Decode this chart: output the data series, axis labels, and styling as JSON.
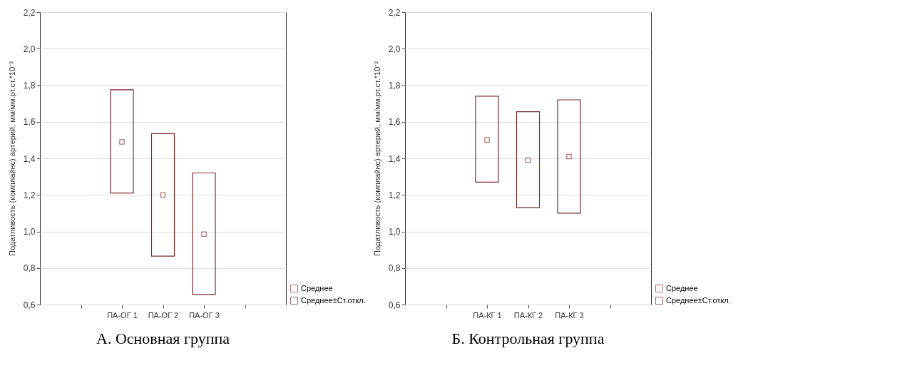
{
  "chart_data": [
    {
      "type": "bar",
      "title": "А. Основная группа",
      "ylabel": "Податливость (комплайнс) артерий, мм/мм.рт.ст.*10⁻³",
      "categories": [
        null,
        "ПА-ОГ 1",
        "ПА-ОГ 2",
        "ПА-ОГ 3",
        null
      ],
      "series": [
        {
          "name": "Среднее",
          "type": "scatter",
          "marker": "square",
          "color": "#9b3535",
          "values": [
            null,
            1.49,
            1.2,
            0.985,
            null
          ]
        },
        {
          "name": "Среднее±Ст.откл.",
          "color": "#7b2c2c",
          "base": [
            null,
            1.21,
            0.865,
            0.655,
            null
          ],
          "values": [
            null,
            0.565,
            0.67,
            0.665,
            null
          ]
        }
      ],
      "ylim": [
        0.6,
        2.2
      ],
      "yticks": [
        {
          "value": 0.6,
          "label": "0,6"
        },
        {
          "value": 0.8,
          "label": "0,8"
        },
        {
          "value": 1.0,
          "label": "1,0"
        },
        {
          "value": 1.2,
          "label": "1,2"
        },
        {
          "value": 1.4,
          "label": "1,4"
        },
        {
          "value": 1.6,
          "label": "1,6"
        },
        {
          "value": 1.8,
          "label": "1,8"
        },
        {
          "value": 2.0,
          "label": "2,0"
        },
        {
          "value": 2.2,
          "label": "2,2"
        }
      ],
      "grid": "y",
      "legend": "bottom right"
    },
    {
      "type": "bar",
      "title": "Б. Контрольная группа",
      "ylabel": "Податливость (комплайнс) артерий, мм/мм.рт.ст.*10⁻³",
      "categories": [
        null,
        "ПА-КГ 1",
        "ПА-КГ 2",
        "ПА-КГ 3",
        null
      ],
      "series": [
        {
          "name": "Среднее",
          "type": "scatter",
          "marker": "square",
          "color": "#9b3535",
          "values": [
            null,
            1.5,
            1.39,
            1.41,
            null
          ]
        },
        {
          "name": "Среднее±Ст.откл.",
          "color": "#7b2c2c",
          "base": [
            null,
            1.27,
            1.13,
            1.1,
            null
          ],
          "values": [
            null,
            0.47,
            0.525,
            0.62,
            null
          ]
        }
      ],
      "ylim": [
        0.6,
        2.2
      ],
      "yticks": [
        {
          "value": 0.6,
          "label": "0,6"
        },
        {
          "value": 0.8,
          "label": "0,8"
        },
        {
          "value": 1.0,
          "label": "1,0"
        },
        {
          "value": 1.2,
          "label": "1,2"
        },
        {
          "value": 1.4,
          "label": "1,4"
        },
        {
          "value": 1.6,
          "label": "1,6"
        },
        {
          "value": 1.8,
          "label": "1,8"
        },
        {
          "value": 2.0,
          "label": "2,0"
        },
        {
          "value": 2.2,
          "label": "2,2"
        }
      ],
      "grid": "y",
      "legend": "bottom right"
    }
  ]
}
